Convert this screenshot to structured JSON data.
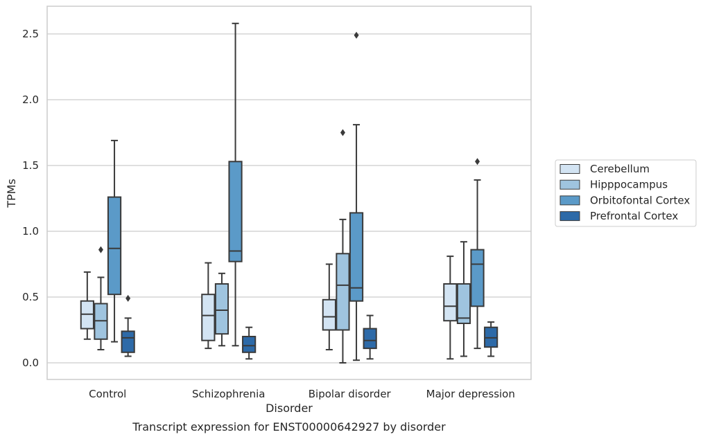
{
  "chart_data": {
    "type": "boxplot",
    "caption": "Transcript expression for ENST00000642927 by disorder",
    "xlabel": "Disorder",
    "ylabel": "TPMs",
    "ylim": [
      -0.12,
      2.71
    ],
    "yticks": [
      "0.0",
      "0.5",
      "1.0",
      "1.5",
      "2.0",
      "2.5"
    ],
    "ytick_values": [
      0.0,
      0.5,
      1.0,
      1.5,
      2.0,
      2.5
    ],
    "grid": "horizontal",
    "legend_position": "right",
    "categories": [
      "Control",
      "Schizophrenia",
      "Bipolar disorder",
      "Major depression"
    ],
    "series": [
      {
        "name": "Cerebellum",
        "color": "#d3e4f3",
        "boxes": [
          {
            "whislo": 0.18,
            "q1": 0.26,
            "med": 0.37,
            "q3": 0.47,
            "whishi": 0.69,
            "fliers": []
          },
          {
            "whislo": 0.11,
            "q1": 0.17,
            "med": 0.36,
            "q3": 0.52,
            "whishi": 0.76,
            "fliers": []
          },
          {
            "whislo": 0.1,
            "q1": 0.25,
            "med": 0.35,
            "q3": 0.48,
            "whishi": 0.75,
            "fliers": []
          },
          {
            "whislo": 0.03,
            "q1": 0.32,
            "med": 0.43,
            "q3": 0.6,
            "whishi": 0.81,
            "fliers": []
          }
        ]
      },
      {
        "name": "Hipppocampus",
        "color": "#9fc4df",
        "boxes": [
          {
            "whislo": 0.1,
            "q1": 0.18,
            "med": 0.32,
            "q3": 0.45,
            "whishi": 0.65,
            "fliers": [
              0.86
            ]
          },
          {
            "whislo": 0.13,
            "q1": 0.22,
            "med": 0.4,
            "q3": 0.6,
            "whishi": 0.68,
            "fliers": []
          },
          {
            "whislo": 0.0,
            "q1": 0.25,
            "med": 0.59,
            "q3": 0.83,
            "whishi": 1.09,
            "fliers": [
              1.75
            ]
          },
          {
            "whislo": 0.05,
            "q1": 0.3,
            "med": 0.34,
            "q3": 0.6,
            "whishi": 0.92,
            "fliers": []
          }
        ]
      },
      {
        "name": "Orbitofontal Cortex",
        "color": "#5b9ac8",
        "boxes": [
          {
            "whislo": 0.16,
            "q1": 0.52,
            "med": 0.87,
            "q3": 1.26,
            "whishi": 1.69,
            "fliers": []
          },
          {
            "whislo": 0.13,
            "q1": 0.77,
            "med": 0.85,
            "q3": 1.53,
            "whishi": 2.58,
            "fliers": []
          },
          {
            "whislo": 0.02,
            "q1": 0.47,
            "med": 0.57,
            "q3": 1.14,
            "whishi": 1.81,
            "fliers": [
              2.49
            ]
          },
          {
            "whislo": 0.11,
            "q1": 0.43,
            "med": 0.75,
            "q3": 0.86,
            "whishi": 1.39,
            "fliers": [
              1.53
            ]
          }
        ]
      },
      {
        "name": "Prefrontal Cortex",
        "color": "#2d6aa8",
        "boxes": [
          {
            "whislo": 0.05,
            "q1": 0.08,
            "med": 0.19,
            "q3": 0.24,
            "whishi": 0.34,
            "fliers": [
              0.49
            ]
          },
          {
            "whislo": 0.03,
            "q1": 0.08,
            "med": 0.13,
            "q3": 0.2,
            "whishi": 0.27,
            "fliers": []
          },
          {
            "whislo": 0.03,
            "q1": 0.11,
            "med": 0.17,
            "q3": 0.26,
            "whishi": 0.36,
            "fliers": []
          },
          {
            "whislo": 0.05,
            "q1": 0.12,
            "med": 0.19,
            "q3": 0.27,
            "whishi": 0.31,
            "fliers": []
          }
        ]
      }
    ]
  }
}
